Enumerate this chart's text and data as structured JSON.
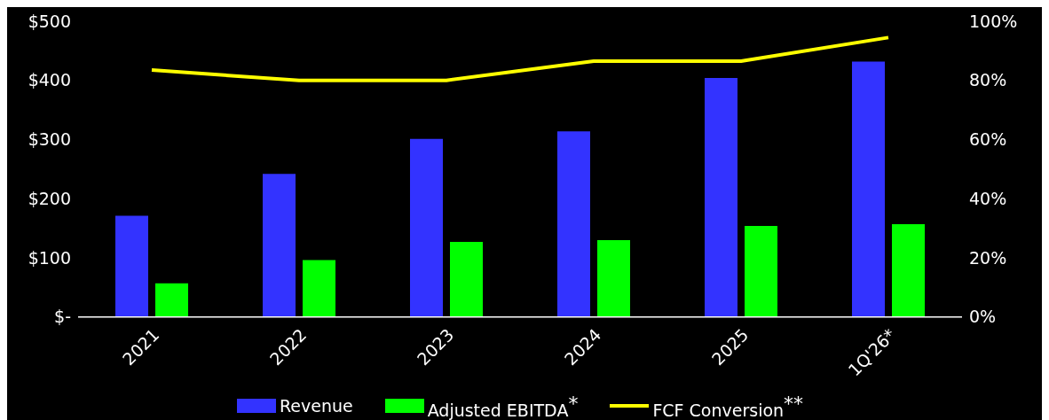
{
  "chart_data": {
    "type": "bar",
    "categories": [
      "2021",
      "2022",
      "2023",
      "2024",
      "2025",
      "1Q'26*"
    ],
    "series": [
      {
        "name": "Revenue",
        "color": "#3333ff",
        "values": [
          171,
          242,
          301,
          314,
          404,
          432
        ]
      },
      {
        "name": "Adjusted EBITDA$^{*}$",
        "color": "#00ff00",
        "values": [
          57,
          96,
          127,
          130,
          154,
          157
        ]
      },
      {
        "name": "FCF Conversion$^{**}$",
        "type": "line",
        "axis": "y2",
        "color": "#ffff00",
        "values": [
          83.5,
          80,
          80,
          86.5,
          86.5,
          94.5
        ]
      }
    ],
    "ylim": [
      0,
      500
    ],
    "yticks": [
      {
        "value": 0,
        "label": "$-"
      },
      {
        "value": 100,
        "label": "$100"
      },
      {
        "value": 200,
        "label": "$200"
      },
      {
        "value": 300,
        "label": "$300"
      },
      {
        "value": 400,
        "label": "$400"
      },
      {
        "value": 500,
        "label": "$500"
      }
    ],
    "y2lim": [
      0,
      100
    ],
    "y2ticks": [
      {
        "value": 0,
        "label": "0%"
      },
      {
        "value": 20,
        "label": "20%"
      },
      {
        "value": 40,
        "label": "40%"
      },
      {
        "value": 60,
        "label": "60%"
      },
      {
        "value": 80,
        "label": "80%"
      },
      {
        "value": 100,
        "label": "100%"
      }
    ],
    "grid": false,
    "legend": "bottom",
    "marker": "none",
    "line_style": "solid"
  }
}
